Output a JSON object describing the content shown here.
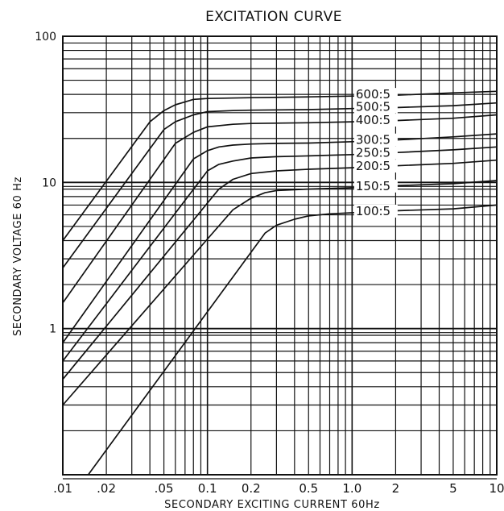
{
  "chart_data": {
    "type": "line",
    "title": "EXCITATION CURVE",
    "xlabel": "SECONDARY EXCITING CURRENT 60Hz",
    "ylabel": "SECONDARY VOLTAGE 60 Hz",
    "xscale": "log",
    "yscale": "log",
    "xlim": [
      0.01,
      10
    ],
    "ylim": [
      0.1,
      100
    ],
    "x_tick_labels": [
      ".01",
      ".02",
      ".05",
      "0.1",
      "0.2",
      "0.5",
      "1.0",
      "2",
      "5",
      "10"
    ],
    "x_tick_values": [
      0.01,
      0.02,
      0.05,
      0.1,
      0.2,
      0.5,
      1.0,
      2,
      5,
      10
    ],
    "y_tick_labels": [
      "100",
      "10",
      "1"
    ],
    "y_tick_values": [
      100,
      10,
      1
    ],
    "grid": true,
    "series": [
      {
        "name": "600:5",
        "x": [
          0.01,
          0.04,
          0.05,
          0.06,
          0.08,
          0.1,
          0.2,
          0.5,
          1,
          2,
          5,
          10
        ],
        "y": [
          4.0,
          26,
          31,
          34,
          37,
          37.5,
          38,
          38.5,
          39,
          39.5,
          41,
          42
        ]
      },
      {
        "name": "500:5",
        "x": [
          0.01,
          0.05,
          0.06,
          0.08,
          0.1,
          0.15,
          0.2,
          0.5,
          1,
          2,
          5,
          10
        ],
        "y": [
          2.6,
          23,
          26,
          29,
          30.5,
          31,
          31.2,
          31.5,
          32,
          32.5,
          33.5,
          35
        ]
      },
      {
        "name": "400:5",
        "x": [
          0.01,
          0.06,
          0.08,
          0.1,
          0.15,
          0.2,
          0.5,
          1,
          2,
          5,
          10
        ],
        "y": [
          1.5,
          18.5,
          22,
          24,
          25,
          25.3,
          25.6,
          26,
          26.5,
          27.5,
          29
        ]
      },
      {
        "name": "300:5",
        "x": [
          0.01,
          0.08,
          0.1,
          0.12,
          0.15,
          0.2,
          0.3,
          0.5,
          1,
          2,
          5,
          10
        ],
        "y": [
          0.8,
          14.5,
          16.5,
          17.5,
          18,
          18.3,
          18.5,
          18.6,
          19,
          19.5,
          20.5,
          21.5
        ]
      },
      {
        "name": "250:5",
        "x": [
          0.01,
          0.1,
          0.12,
          0.15,
          0.2,
          0.3,
          0.5,
          1,
          2,
          5,
          10
        ],
        "y": [
          0.6,
          12,
          13.3,
          14,
          14.7,
          15,
          15.2,
          15.5,
          16,
          16.7,
          17.5
        ]
      },
      {
        "name": "200:5",
        "x": [
          0.01,
          0.12,
          0.15,
          0.2,
          0.3,
          0.5,
          1,
          2,
          5,
          10
        ],
        "y": [
          0.45,
          9,
          10.5,
          11.5,
          12,
          12.3,
          12.6,
          13,
          13.5,
          14.2
        ]
      },
      {
        "name": "150:5",
        "x": [
          0.01,
          0.15,
          0.2,
          0.25,
          0.3,
          0.5,
          1,
          2,
          5,
          10
        ],
        "y": [
          0.3,
          6.5,
          7.8,
          8.5,
          8.8,
          9,
          9.2,
          9.5,
          9.8,
          10.3
        ]
      },
      {
        "name": "100:5",
        "x": [
          0.015,
          0.25,
          0.3,
          0.4,
          0.5,
          0.7,
          1,
          2,
          5,
          10
        ],
        "y": [
          0.1,
          4.5,
          5.1,
          5.6,
          5.9,
          6.1,
          6.2,
          6.4,
          6.6,
          7.0
        ]
      }
    ]
  }
}
